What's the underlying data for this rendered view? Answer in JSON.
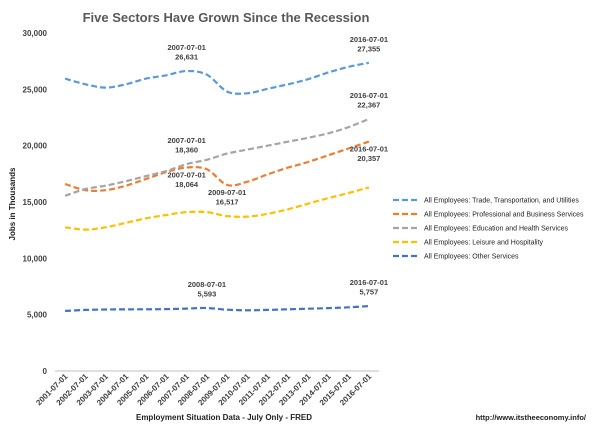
{
  "chart_data": {
    "type": "line",
    "title": "Five Sectors Have Grown Since the Recession",
    "xlabel": "Employment Situation Data - July Only - FRED",
    "ylabel": "Jobs in Thousands",
    "footer": "http://www.itstheeconomy.info/",
    "ylim": [
      0,
      30000
    ],
    "y_ticks": [
      "0",
      "5,000",
      "10,000",
      "15,000",
      "20,000",
      "25,000",
      "30,000"
    ],
    "y_tick_values": [
      0,
      5000,
      10000,
      15000,
      20000,
      25000,
      30000
    ],
    "categories": [
      "2001-07-01",
      "2002-07-01",
      "2003-07-01",
      "2004-07-01",
      "2005-07-01",
      "2006-07-01",
      "2007-07-01",
      "2008-07-01",
      "2009-07-01",
      "2010-07-01",
      "2011-07-01",
      "2012-07-01",
      "2013-07-01",
      "2014-07-01",
      "2015-07-01",
      "2016-07-01"
    ],
    "grid": false,
    "legend_position": "right",
    "series": [
      {
        "name": "All Employees: Trade, Transportation, and Utilities",
        "color": "#5b9bd5",
        "values": [
          25950,
          25450,
          25150,
          25450,
          25950,
          26250,
          26631,
          26300,
          24800,
          24650,
          25050,
          25450,
          25900,
          26500,
          27000,
          27355
        ]
      },
      {
        "name": "All Employees: Professional and Business Services",
        "color": "#ed7d31",
        "values": [
          16600,
          16050,
          16050,
          16450,
          17050,
          17650,
          18064,
          17900,
          16517,
          16800,
          17450,
          18050,
          18550,
          19150,
          19750,
          20357
        ]
      },
      {
        "name": "All Employees: Education and Health Services",
        "color": "#a5a5a5",
        "values": [
          15550,
          16150,
          16450,
          16850,
          17300,
          17750,
          18360,
          18750,
          19300,
          19650,
          20000,
          20350,
          20700,
          21100,
          21650,
          22367
        ]
      },
      {
        "name": "All Employees: Leisure and Hospitality",
        "color": "#ffc000",
        "values": [
          12750,
          12550,
          12750,
          13150,
          13550,
          13850,
          14100,
          14100,
          13750,
          13700,
          13950,
          14350,
          14850,
          15350,
          15800,
          16300
        ]
      },
      {
        "name": "All Employees: Other Services",
        "color": "#4472c4",
        "values": [
          5330,
          5420,
          5460,
          5470,
          5480,
          5490,
          5540,
          5593,
          5440,
          5390,
          5420,
          5480,
          5530,
          5580,
          5650,
          5757
        ]
      }
    ],
    "annotations": [
      {
        "series": 0,
        "index": 6,
        "date": "2007-07-01",
        "value": "26,631",
        "pos": "above"
      },
      {
        "series": 0,
        "index": 15,
        "date": "2016-07-01",
        "value": "27,355",
        "pos": "above"
      },
      {
        "series": 2,
        "index": 6,
        "date": "2007-07-01",
        "value": "18,360",
        "pos": "above"
      },
      {
        "series": 1,
        "index": 6,
        "date": "2007-07-01",
        "value": "18,064",
        "pos": "below"
      },
      {
        "series": 1,
        "index": 8,
        "date": "2009-07-01",
        "value": "16,517",
        "pos": "below"
      },
      {
        "series": 2,
        "index": 15,
        "date": "2016-07-01",
        "value": "22,367",
        "pos": "above"
      },
      {
        "series": 1,
        "index": 15,
        "date": "2016-07-01",
        "value": "20,357",
        "pos": "below"
      },
      {
        "series": 4,
        "index": 7,
        "date": "2008-07-01",
        "value": "5,593",
        "pos": "above"
      },
      {
        "series": 4,
        "index": 15,
        "date": "2016-07-01",
        "value": "5,757",
        "pos": "above"
      }
    ]
  }
}
